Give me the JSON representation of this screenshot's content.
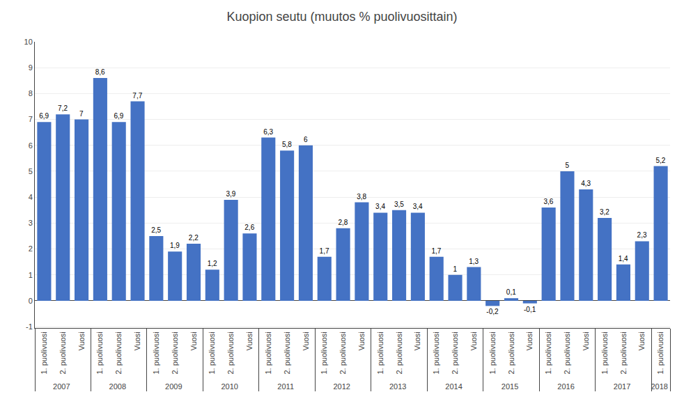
{
  "chart_data": {
    "type": "bar",
    "title": "Kuopion seutu",
    "subtitle": "(muutos % puolivuosittain)",
    "categories": [
      "1. puolivuosi",
      "2. puolivuosi",
      "Vuosi",
      "1. puolivuosi",
      "2. puolivuosi",
      "Vuosi",
      "1. puolivuosi",
      "2. puolivuosi",
      "Vuosi",
      "1. puolivuosi",
      "2. puolivuosi",
      "Vuosi",
      "1. puolivuosi",
      "2. puolivuosi",
      "Vuosi",
      "1. puolivuosi",
      "2. puolivuosi",
      "Vuosi",
      "1. puolivuosi",
      "2. puolivuosi",
      "Vuosi",
      "1. puolivuosi",
      "2. puolivuosi",
      "Vuosi",
      "1. puolivuosi",
      "2. puolivuosi",
      "Vuosi",
      "1. puolivuosi",
      "2. puolivuosi",
      "Vuosi",
      "1. puolivuosi",
      "2. puolivuosi",
      "Vuosi",
      "1. puolivuosi"
    ],
    "groups": [
      "2007",
      "2007",
      "2007",
      "2008",
      "2008",
      "2008",
      "2009",
      "2009",
      "2009",
      "2010",
      "2010",
      "2010",
      "2011",
      "2011",
      "2011",
      "2012",
      "2012",
      "2012",
      "2013",
      "2013",
      "2013",
      "2014",
      "2014",
      "2014",
      "2015",
      "2015",
      "2015",
      "2016",
      "2016",
      "2016",
      "2017",
      "2017",
      "2017",
      "2018"
    ],
    "values": [
      6.9,
      7.2,
      7.0,
      8.6,
      6.9,
      7.7,
      2.5,
      1.9,
      2.2,
      1.2,
      3.9,
      2.6,
      6.3,
      5.8,
      6.0,
      1.7,
      2.8,
      3.8,
      3.4,
      3.5,
      3.4,
      1.7,
      1.0,
      1.3,
      -0.2,
      0.1,
      -0.1,
      3.6,
      5.0,
      4.3,
      3.2,
      1.4,
      2.3,
      5.2
    ],
    "value_labels": [
      "6,9",
      "7,2",
      "7",
      "8,6",
      "6,9",
      "7,7",
      "2,5",
      "1,9",
      "2,2",
      "1,2",
      "3,9",
      "2,6",
      "6,3",
      "5,8",
      "6",
      "1,7",
      "2,8",
      "3,8",
      "3,4",
      "3,5",
      "3,4",
      "1,7",
      "1",
      "1,3",
      "-0,2",
      "0,1",
      "-0,1",
      "3,6",
      "5",
      "4,3",
      "3,2",
      "1,4",
      "2,3",
      "5,2"
    ],
    "color": "#4472C4",
    "ylim": [
      -1.05,
      10
    ],
    "yticks": [
      -1,
      0,
      1,
      2,
      3,
      4,
      5,
      6,
      7,
      8,
      9,
      10
    ],
    "grid": true,
    "data_labels": true
  }
}
